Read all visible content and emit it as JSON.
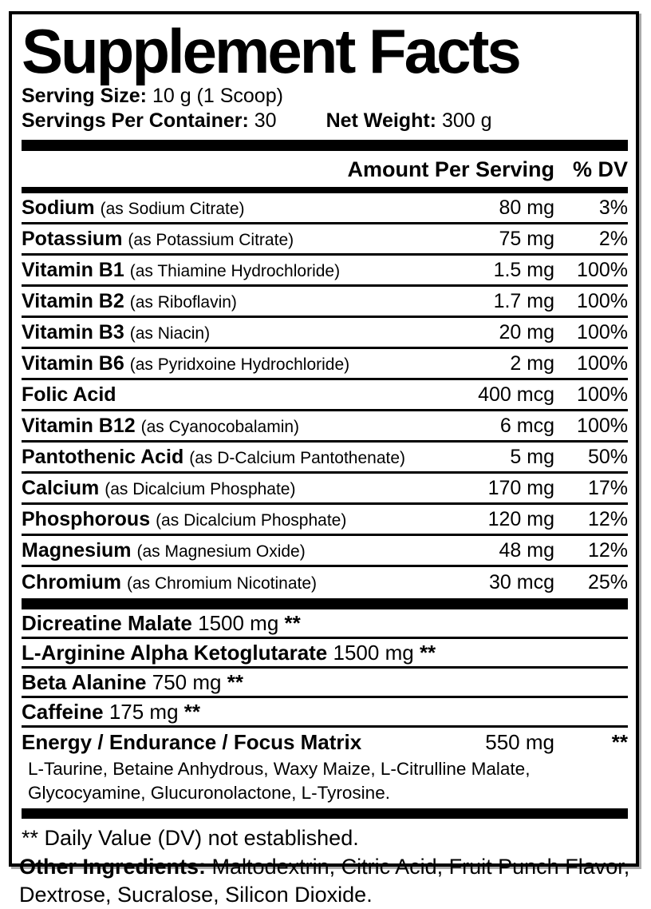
{
  "label": {
    "title": "Supplement Facts",
    "serving": {
      "size_label": "Serving Size:",
      "size_value": "10 g (1 Scoop)",
      "per_container_label": "Servings Per Container:",
      "per_container_value": "30",
      "net_weight_label": "Net Weight:",
      "net_weight_value": "300 g"
    },
    "columns": {
      "amount": "Amount Per Serving",
      "dv": "% DV"
    },
    "nutrients": [
      {
        "name": "Sodium",
        "detail": "(as Sodium Citrate)",
        "amount": "80 mg",
        "dv": "3%"
      },
      {
        "name": "Potassium",
        "detail": "(as Potassium Citrate)",
        "amount": "75 mg",
        "dv": "2%"
      },
      {
        "name": "Vitamin B1",
        "detail": "(as Thiamine Hydrochloride)",
        "amount": "1.5 mg",
        "dv": "100%"
      },
      {
        "name": "Vitamin B2",
        "detail": "(as Riboflavin)",
        "amount": "1.7 mg",
        "dv": "100%"
      },
      {
        "name": "Vitamin B3",
        "detail": "(as Niacin)",
        "amount": "20 mg",
        "dv": "100%"
      },
      {
        "name": "Vitamin B6",
        "detail": "(as Pyridxoine Hydrochloride)",
        "amount": "2 mg",
        "dv": "100%"
      },
      {
        "name": "Folic Acid",
        "detail": "",
        "amount": "400 mcg",
        "dv": "100%"
      },
      {
        "name": "Vitamin B12",
        "detail": "(as Cyanocobalamin)",
        "amount": "6 mcg",
        "dv": "100%"
      },
      {
        "name": "Pantothenic Acid",
        "detail": "(as D-Calcium Pantothenate)",
        "amount": "5 mg",
        "dv": "50%"
      },
      {
        "name": "Calcium",
        "detail": "(as Dicalcium Phosphate)",
        "amount": "170 mg",
        "dv": "17%"
      },
      {
        "name": "Phosphorous",
        "detail": "(as Dicalcium Phosphate)",
        "amount": "120 mg",
        "dv": "12%"
      },
      {
        "name": "Magnesium",
        "detail": "(as Magnesium Oxide)",
        "amount": "48 mg",
        "dv": "12%"
      },
      {
        "name": "Chromium",
        "detail": "(as Chromium Nicotinate)",
        "amount": "30 mcg",
        "dv": "25%"
      }
    ],
    "blend": [
      {
        "name": "Dicreatine Malate",
        "amount": "1500 mg",
        "dv": "**",
        "sub": ""
      },
      {
        "name": "L-Arginine Alpha Ketoglutarate",
        "amount": "1500 mg",
        "dv": "**",
        "sub": ""
      },
      {
        "name": "Beta Alanine",
        "amount": "750 mg",
        "dv": "**",
        "sub": ""
      },
      {
        "name": "Caffeine",
        "amount": "175 mg",
        "dv": "**",
        "sub": ""
      },
      {
        "name": "Energy / Endurance / Focus Matrix",
        "amount": "550 mg",
        "dv": "**",
        "sub": "L-Taurine, Betaine Anhydrous, Waxy Maize, L-Citrulline Malate, Glycocyamine, Glucuronolactone, L-Tyrosine."
      }
    ],
    "footnote": "** Daily Value (DV) not established."
  },
  "other_ingredients": {
    "label": "Other Ingredients:",
    "text": "Maltodextrin, Citric Acid, Fruit Punch Flavor, Dextrose, Sucralose, Silicon Dioxide."
  }
}
